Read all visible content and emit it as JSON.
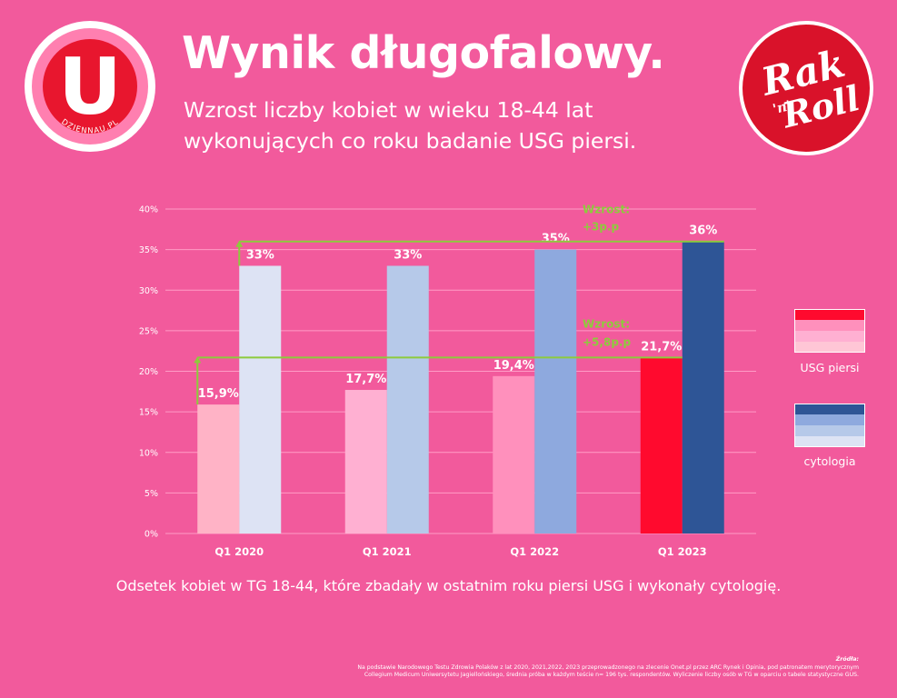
{
  "header": {
    "title": "Wynik długofalowy.",
    "subtitle_line1": "Wzrost liczby kobiet w wieku 18-44 lat",
    "subtitle_line2": "wykonujących co roku badanie USG piersi."
  },
  "logos": {
    "dziennau_letter": "U",
    "dziennau_text": "DZIENNAU.PL",
    "rakroll_line1": "Rak",
    "rakroll_mid": "'n'",
    "rakroll_line2": "Roll"
  },
  "chart_data": {
    "type": "bar",
    "categories": [
      "Q1 2020",
      "Q1 2021",
      "Q1 2022",
      "Q1 2023"
    ],
    "series": [
      {
        "name": "USG piersi",
        "values": [
          15.9,
          17.7,
          19.4,
          21.7
        ],
        "labels": [
          "15,9%",
          "17,7%",
          "19,4%",
          "21,7%"
        ],
        "colors": [
          "#ffb3c6",
          "#ffb0d2",
          "#ff90bc",
          "#ff0a2e"
        ]
      },
      {
        "name": "cytologia",
        "values": [
          33,
          33,
          35,
          36
        ],
        "labels": [
          "33%",
          "33%",
          "35%",
          "36%"
        ],
        "colors": [
          "#dde3f4",
          "#b6c9e9",
          "#8ea9de",
          "#2e5596"
        ]
      }
    ],
    "ylim": [
      0,
      40
    ],
    "yticks": [
      "0%",
      "5%",
      "10%",
      "15%",
      "20%",
      "25%",
      "30%",
      "35%",
      "40%"
    ],
    "grid": true,
    "annotations": [
      {
        "line1": "Wzrost:",
        "line2": "+3p.p",
        "from": 33,
        "to": 36
      },
      {
        "line1": "Wzrost:",
        "line2": "+5,8p.p",
        "from": 15.9,
        "to": 21.7
      }
    ],
    "accent_color": "#8dcb3c"
  },
  "legend": {
    "items": [
      {
        "label": "USG piersi",
        "colors": [
          "#ff0a2e",
          "#ff90bc",
          "#ffb0d2",
          "#ffc6d6"
        ]
      },
      {
        "label": "cytologia",
        "colors": [
          "#2e5596",
          "#8ea9de",
          "#b6c9e9",
          "#dde3f4"
        ]
      }
    ]
  },
  "caption": "Odsetek kobiet w TG 18-44, które zbadały w ostatnim roku piersi USG i wykonały cytologię.",
  "source": {
    "title": "Źródła:",
    "line1": "Na podstawie Narodowego Testu Zdrowia Polaków z lat 2020, 2021,2022, 2023 przeprowadzonego na zlecenie Onet.pl przez ARC Rynek i Opinia, pod patronatem merytorycznym",
    "line2": "Collegium Medicum Uniwersytetu Jagiellońskiego, średnia próba w każdym teście n= 196 tys. respondentów. Wyliczenie liczby osób w TG w oparciu o tabele statystyczne GUS."
  }
}
